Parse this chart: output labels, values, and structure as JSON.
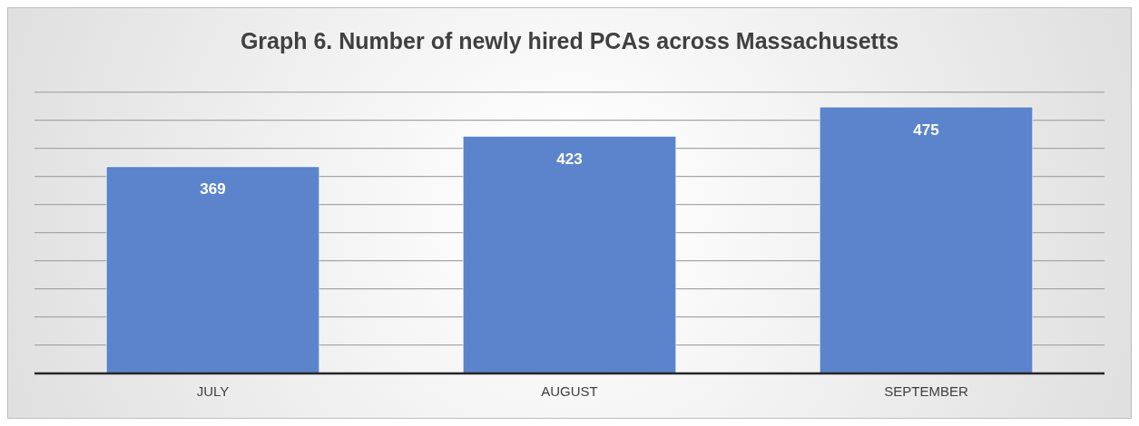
{
  "chart_data": {
    "type": "bar",
    "title": "Graph 6. Number of newly hired PCAs across Massachusetts",
    "categories": [
      "JULY",
      "AUGUST",
      "SEPTEMBER"
    ],
    "values": [
      369,
      423,
      475
    ],
    "color": "#5b84cc",
    "grid": "y",
    "tick_labels": "x",
    "data_labels": true
  }
}
